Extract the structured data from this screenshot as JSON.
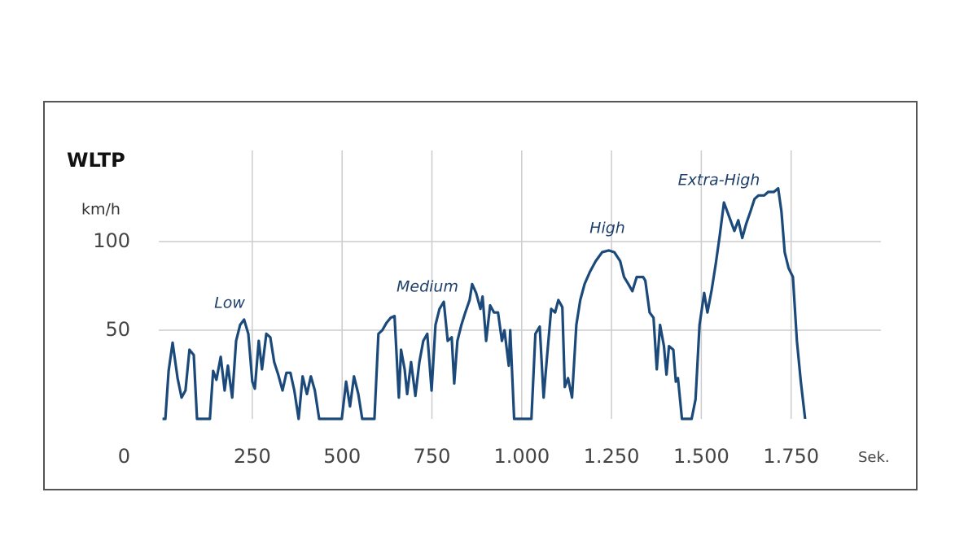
{
  "chart_data": {
    "type": "line",
    "title": "WLTP",
    "y_label": "km/h",
    "x_label": "Sek.",
    "annotations": [
      "Low",
      "Medium",
      "High",
      "Extra-High"
    ],
    "x": [
      0,
      8,
      17,
      28,
      42,
      53,
      64,
      75,
      87,
      96,
      132,
      141,
      150,
      162,
      173,
      182,
      194,
      205,
      216,
      227,
      239,
      250,
      257,
      268,
      277,
      289,
      300,
      311,
      322,
      334,
      345,
      356,
      367,
      379,
      390,
      402,
      413,
      424,
      436,
      499,
      511,
      522,
      533,
      545,
      556,
      590,
      601,
      612,
      623,
      635,
      646,
      658,
      664,
      674,
      681,
      692,
      704,
      715,
      726,
      737,
      749,
      760,
      771,
      783,
      794,
      805,
      812,
      821,
      832,
      843,
      855,
      862,
      873,
      885,
      891,
      901,
      912,
      923,
      934,
      945,
      952,
      964,
      968,
      979,
      1027,
      1038,
      1050,
      1061,
      1070,
      1082,
      1093,
      1102,
      1113,
      1120,
      1129,
      1140,
      1152,
      1163,
      1175,
      1190,
      1206,
      1224,
      1242,
      1258,
      1274,
      1285,
      1297,
      1308,
      1320,
      1338,
      1344,
      1356,
      1367,
      1376,
      1385,
      1396,
      1403,
      1410,
      1422,
      1429,
      1435,
      1446,
      1473,
      1484,
      1495,
      1508,
      1517,
      1529,
      1540,
      1551,
      1563,
      1574,
      1592,
      1603,
      1614,
      1625,
      1637,
      1648,
      1659,
      1675,
      1686,
      1702,
      1714,
      1723,
      1732,
      1743,
      1755,
      1766,
      1777,
      1789
    ],
    "series": [
      {
        "name": "WLTP",
        "color": "#1b4a7a",
        "values": [
          0,
          0,
          27,
          43,
          23,
          12,
          16,
          39,
          36,
          0,
          0,
          27,
          22,
          35,
          16,
          30,
          12,
          44,
          53,
          56,
          48,
          21,
          17,
          44,
          28,
          48,
          46,
          32,
          25,
          16,
          26,
          26,
          16,
          0,
          24,
          14,
          24,
          16,
          0,
          0,
          21,
          7,
          24,
          14,
          0,
          0,
          48,
          50,
          54,
          57,
          58,
          12,
          39,
          28,
          14,
          32,
          13,
          32,
          44,
          48,
          16,
          53,
          62,
          66,
          44,
          46,
          20,
          44,
          53,
          60,
          67,
          76,
          71,
          62,
          69,
          44,
          64,
          60,
          60,
          44,
          50,
          30,
          50,
          0,
          0,
          48,
          52,
          12,
          34,
          62,
          60,
          67,
          63,
          18,
          23,
          12,
          53,
          67,
          76,
          83,
          89,
          94,
          95,
          94,
          89,
          80,
          76,
          72,
          80,
          80,
          78,
          60,
          57,
          28,
          53,
          41,
          25,
          41,
          39,
          21,
          23,
          0,
          0,
          11,
          53,
          71,
          60,
          73,
          87,
          103,
          122,
          116,
          106,
          112,
          102,
          110,
          117,
          124,
          126,
          126,
          128,
          128,
          130,
          117,
          94,
          85,
          80,
          44,
          21,
          0
        ]
      }
    ],
    "xlim": [
      0,
      2000
    ],
    "ylim": [
      0,
      150
    ],
    "xticks": [
      250,
      500,
      750,
      {
        "value": 1000,
        "label": "1.000"
      },
      {
        "value": 1250,
        "label": "1.250"
      },
      {
        "value": 1500,
        "label": "1.500"
      },
      {
        "value": 1750,
        "label": "1.750"
      }
    ],
    "yticks": [
      0,
      50,
      100
    ],
    "grid": true
  }
}
